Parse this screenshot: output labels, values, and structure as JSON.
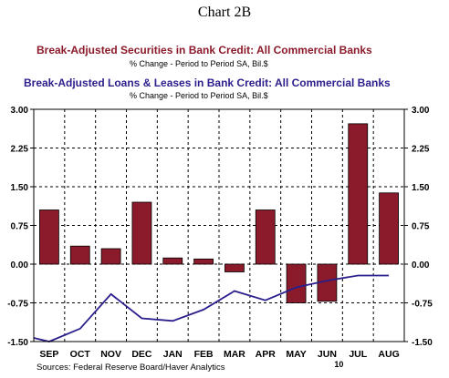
{
  "chart_title": "Chart 2B",
  "source": "Sources:  Federal Reserve Board/Haver Analytics",
  "chart_data": {
    "type": "bar",
    "categories": [
      "SEP",
      "OCT",
      "NOV",
      "DEC",
      "JAN",
      "FEB",
      "MAR",
      "APR",
      "MAY",
      "JUN",
      "JUL",
      "AUG"
    ],
    "year_label": "10",
    "ylim": [
      -1.5,
      3.0
    ],
    "yticks": [
      "3.00",
      "2.25",
      "1.50",
      "0.75",
      "0.00",
      "-0.75",
      "-1.50"
    ],
    "ytick_values": [
      3.0,
      2.25,
      1.5,
      0.75,
      0.0,
      -0.75,
      -1.5
    ],
    "grid": true,
    "series": [
      {
        "name": "Break-Adjusted Securities in Bank Credit: All Commercial Banks",
        "subtitle": "% Change - Period to Period    SA, Bil.$",
        "type": "bar",
        "color": "#8b1a2b",
        "values": [
          1.05,
          0.35,
          0.3,
          1.2,
          0.12,
          0.1,
          -0.15,
          1.05,
          -0.75,
          -0.72,
          2.72,
          1.38
        ]
      },
      {
        "name": "Break-Adjusted Loans & Leases in Bank Credit: All Commercial Banks",
        "subtitle": "% Change - Period to Period    SA, Bil.$",
        "type": "line",
        "color": "#2a1f8c",
        "x": [
          -0.5,
          0.0,
          1.0,
          2.0,
          3.0,
          4.0,
          5.0,
          6.0,
          7.0,
          8.0,
          9.0,
          10.0,
          11.0
        ],
        "values": [
          -1.43,
          -1.5,
          -1.25,
          -0.58,
          -1.05,
          -1.1,
          -0.88,
          -0.52,
          -0.7,
          -0.45,
          -0.32,
          -0.22,
          -0.22
        ]
      }
    ]
  }
}
